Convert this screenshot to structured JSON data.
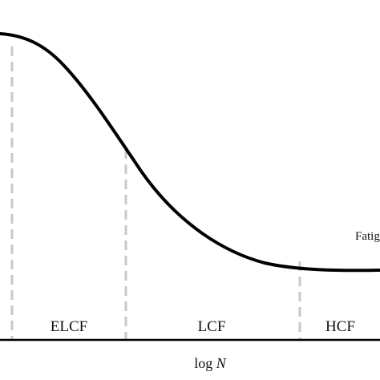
{
  "diagram": {
    "regions": [
      {
        "id": "elcf",
        "label": "ELCF"
      },
      {
        "id": "lcf",
        "label": "LCF"
      },
      {
        "id": "hcf",
        "label": "HCF"
      }
    ],
    "curve_label": "Fatigue",
    "x_axis": {
      "label_prefix": "log ",
      "label_variable": "N"
    },
    "colors": {
      "curve": "#000000",
      "boundaries": "#c8c8c8",
      "axis": "#000000",
      "text": "#111111"
    }
  }
}
